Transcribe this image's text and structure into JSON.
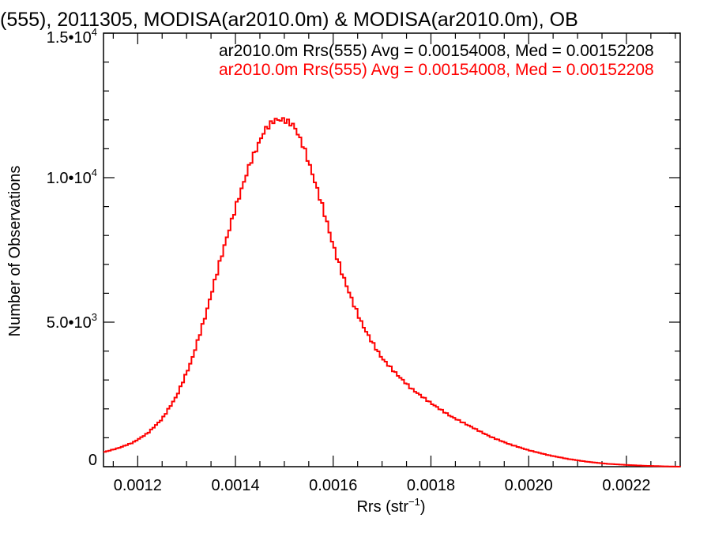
{
  "chart_data": {
    "type": "line",
    "title": "(555), 2011305, MODISA(ar2010.0m) & MODISA(ar2010.0m), OB",
    "xlabel": "Rrs (str",
    "xlabel_sup": "−1",
    "xlabel_suffix": ")",
    "ylabel": "Number of Observations",
    "xlim": [
      0.00113,
      0.00231
    ],
    "ylim": [
      0,
      15000
    ],
    "grid": false,
    "legend_position": "top",
    "x_tick_labels": [
      {
        "value": 0.0012,
        "label": "0.0012"
      },
      {
        "value": 0.0014,
        "label": "0.0014"
      },
      {
        "value": 0.0016,
        "label": "0.0016"
      },
      {
        "value": 0.0018,
        "label": "0.0018"
      },
      {
        "value": 0.002,
        "label": "0.0020"
      },
      {
        "value": 0.0022,
        "label": "0.0022"
      }
    ],
    "y_tick_labels": [
      {
        "value": 0,
        "mantissa": "0",
        "exp": ""
      },
      {
        "value": 5000,
        "mantissa": "5.0•10",
        "exp": "3"
      },
      {
        "value": 10000,
        "mantissa": "1.0•10",
        "exp": "4"
      },
      {
        "value": 15000,
        "mantissa": "1.5•10",
        "exp": "4"
      }
    ],
    "legend": [
      {
        "text": "ar2010.0m Rrs(555) Avg = 0.00154008, Med = 0.00152208",
        "color": "#000000"
      },
      {
        "text": "ar2010.0m Rrs(555) Avg = 0.00154008, Med = 0.00152208",
        "color": "#ff0000"
      }
    ],
    "series": [
      {
        "color": "#ff0000",
        "step": true,
        "x": [
          0.00113,
          0.00116,
          0.00119,
          0.00122,
          0.00125,
          0.00128,
          0.00131,
          0.00134,
          0.00137,
          0.0014,
          0.00143,
          0.00146,
          0.00148,
          0.0015,
          0.00152,
          0.00154,
          0.00156,
          0.00158,
          0.0016,
          0.00162,
          0.00164,
          0.00166,
          0.00168,
          0.0017,
          0.00173,
          0.00176,
          0.0018,
          0.00184,
          0.00188,
          0.00192,
          0.00196,
          0.002,
          0.00204,
          0.00208,
          0.00212,
          0.00216,
          0.0022,
          0.00224,
          0.00228,
          0.00231
        ],
        "y": [
          500,
          640,
          830,
          1150,
          1650,
          2450,
          3650,
          5300,
          7200,
          8950,
          10500,
          11650,
          12000,
          12000,
          11800,
          11050,
          10000,
          8900,
          7650,
          6600,
          5700,
          4900,
          4300,
          3750,
          3200,
          2700,
          2200,
          1750,
          1400,
          1050,
          780,
          570,
          400,
          270,
          170,
          100,
          60,
          30,
          10,
          0
        ]
      }
    ]
  }
}
